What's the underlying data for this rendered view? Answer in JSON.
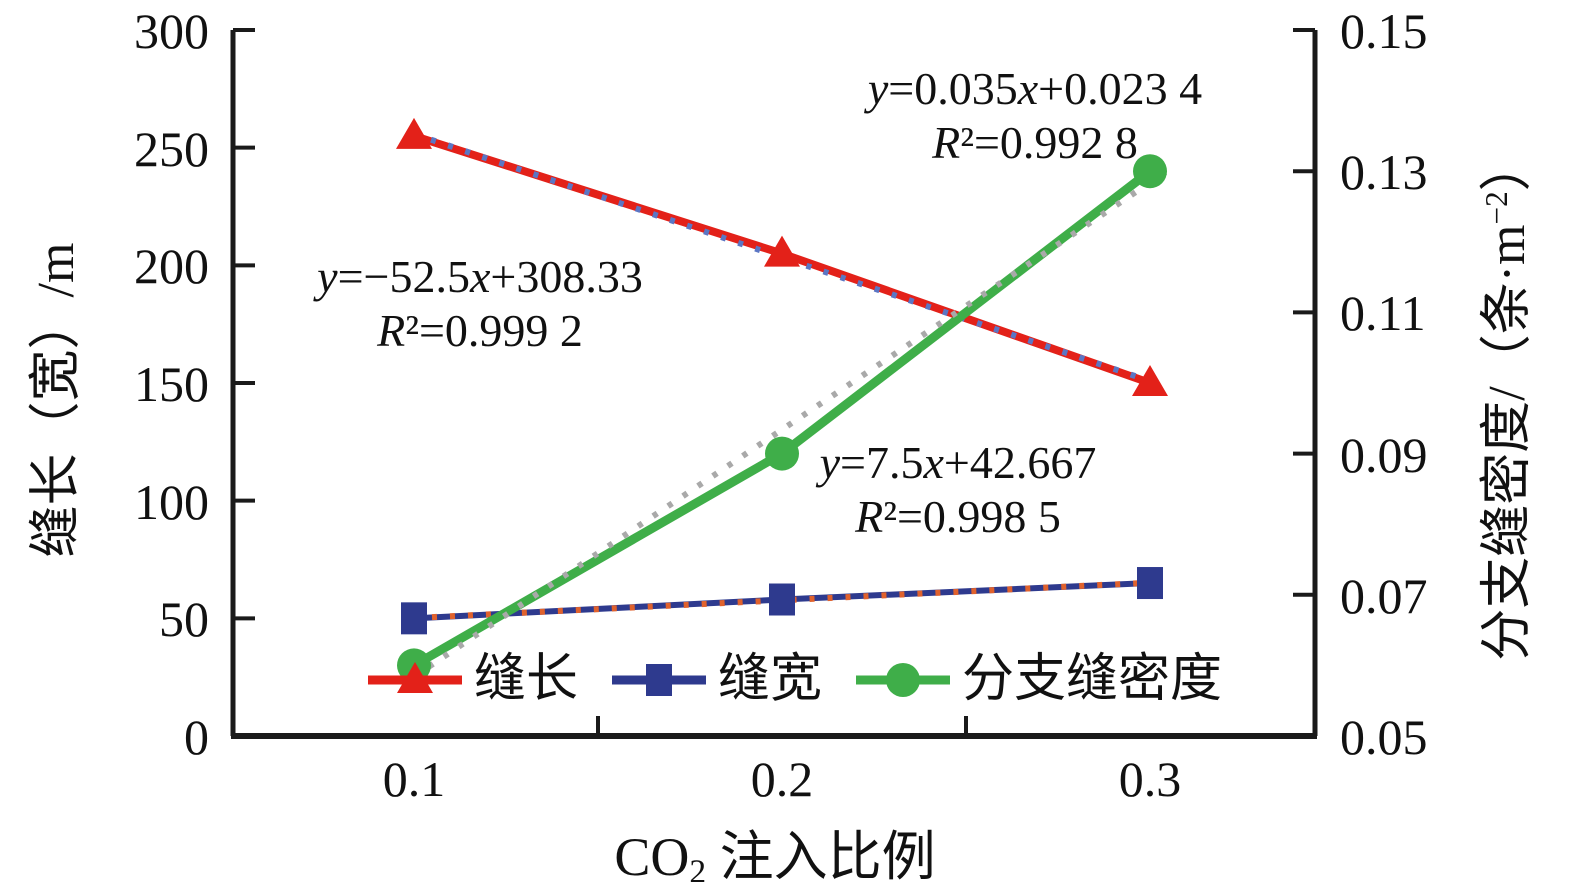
{
  "figure": {
    "background": "#ffffff",
    "axis_color": "#1a1a1a"
  },
  "chart_data": {
    "type": "line",
    "x": [
      0.1,
      0.2,
      0.3
    ],
    "x_tick_labels": [
      "0.1",
      "0.2",
      "0.3"
    ],
    "xlabel": {
      "pre": "CO",
      "sub": "2",
      "post": " 注入比例"
    },
    "left_axis": {
      "label": "缝长（宽）/m",
      "min": 0,
      "max": 300,
      "step": 50,
      "ticks": [
        "0",
        "50",
        "100",
        "150",
        "200",
        "250",
        "300"
      ]
    },
    "right_axis": {
      "label_pre": "分支缝密度/（条·m",
      "label_sup": "−2",
      "label_post": "）",
      "min": 0.05,
      "max": 0.15,
      "step": 0.02,
      "ticks": [
        "0.05",
        "0.07",
        "0.09",
        "0.11",
        "0.13",
        "0.15"
      ]
    },
    "series": [
      {
        "name": "缝宽",
        "axis": "left",
        "marker": "square",
        "color": "#2e3a8e",
        "values": [
          50,
          58,
          65
        ],
        "fit_values": [
          50.167,
          57.667,
          65.167
        ],
        "fit_color": "#e0622d",
        "fit_extend": 0
      },
      {
        "name": "缝长",
        "axis": "left",
        "marker": "triangle",
        "color": "#e32119",
        "values": [
          255,
          205,
          150
        ],
        "fit_values": [
          255.83,
          203.33,
          150.83
        ],
        "fit_color": "#5b76c4",
        "fit_extend": 0
      },
      {
        "name": "分支缝密度",
        "axis": "right",
        "marker": "circle",
        "color": "#3fae49",
        "values": [
          0.06,
          0.09,
          0.13
        ],
        "fit_values": [
          0.0584,
          0.0934,
          0.1284
        ],
        "fit_color": "#a9a9a9",
        "fit_extend": 22
      }
    ],
    "legend": [
      "缝长",
      "缝宽",
      "分支缝密度"
    ],
    "annotations": [
      {
        "lines": [
          "y=−52.5x+308.33",
          "R²=0.999 2"
        ]
      },
      {
        "lines": [
          "y=0.035x+0.023 4",
          "R²=0.992 8"
        ]
      },
      {
        "lines": [
          "y=7.5x+42.667",
          "R²=0.998 5"
        ]
      }
    ]
  }
}
